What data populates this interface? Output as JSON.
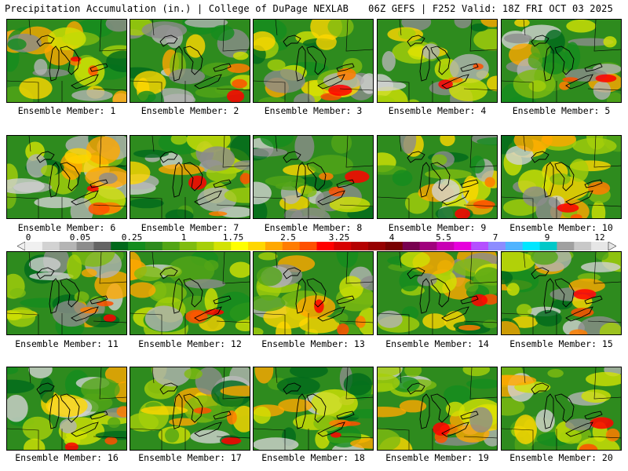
{
  "header": {
    "left_title": "Precipitation Accumulation (in.) | College of DuPage NEXLAB",
    "right_title": "06Z GEFS | F252 Valid: 18Z FRI OCT 03 2025"
  },
  "colorbar": {
    "labels": [
      "0",
      "0.05",
      "0.25",
      "1",
      "1.75",
      "2.5",
      "3.25",
      "4",
      "5.5",
      "7",
      "9",
      "12"
    ],
    "colors": [
      "#f0f0f0",
      "#d2d2d2",
      "#b4b4b4",
      "#8c8c8c",
      "#646464",
      "#00691b",
      "#148c1e",
      "#2e8b1e",
      "#52a516",
      "#7fbc10",
      "#a6cf0a",
      "#d2e204",
      "#ffff00",
      "#ffd700",
      "#ffa800",
      "#ff7d00",
      "#ff5000",
      "#ff0000",
      "#d70000",
      "#b40000",
      "#960000",
      "#780000",
      "#780050",
      "#a0007d",
      "#c800b4",
      "#e600dc",
      "#b450ff",
      "#8c8cff",
      "#50b4ff",
      "#00e6ff",
      "#00c8c8",
      "#a0a0a0",
      "#c8c8c8",
      "#e6e6e6"
    ]
  },
  "panels": [
    {
      "label": "Ensemble Member: 1"
    },
    {
      "label": "Ensemble Member: 2"
    },
    {
      "label": "Ensemble Member: 3"
    },
    {
      "label": "Ensemble Member: 4"
    },
    {
      "label": "Ensemble Member: 5"
    },
    {
      "label": "Ensemble Member: 6"
    },
    {
      "label": "Ensemble Member: 7"
    },
    {
      "label": "Ensemble Member: 8"
    },
    {
      "label": "Ensemble Member: 9"
    },
    {
      "label": "Ensemble Member: 10"
    },
    {
      "label": "Ensemble Member: 11"
    },
    {
      "label": "Ensemble Member: 12"
    },
    {
      "label": "Ensemble Member: 13"
    },
    {
      "label": "Ensemble Member: 14"
    },
    {
      "label": "Ensemble Member: 15"
    },
    {
      "label": "Ensemble Member: 16"
    },
    {
      "label": "Ensemble Member: 17"
    },
    {
      "label": "Ensemble Member: 18"
    },
    {
      "label": "Ensemble Member: 19"
    },
    {
      "label": "Ensemble Member: 20"
    }
  ]
}
